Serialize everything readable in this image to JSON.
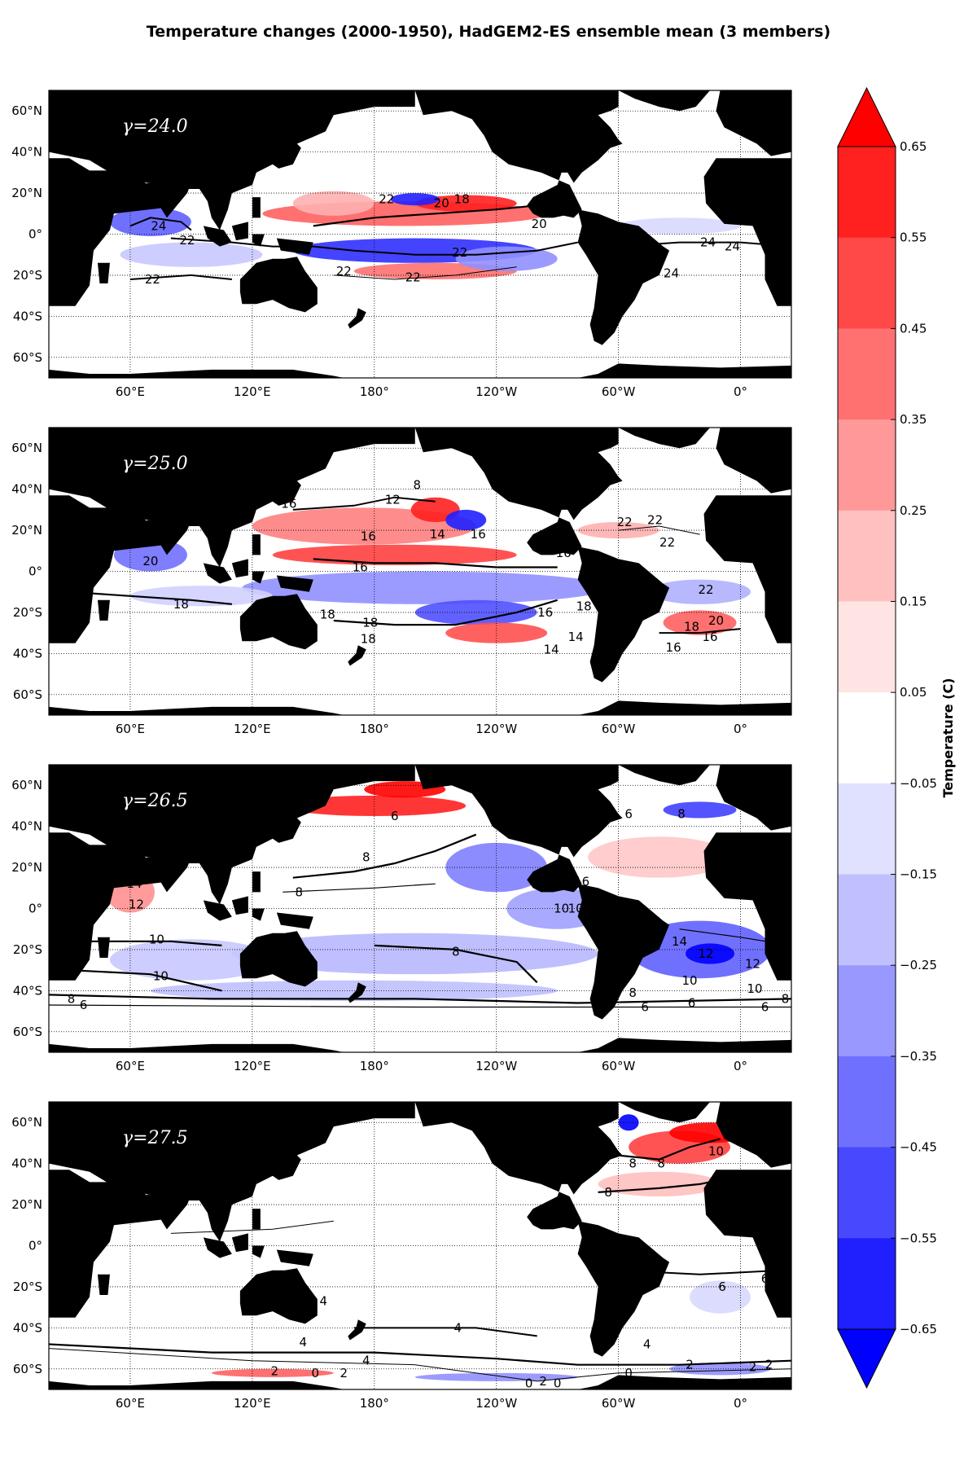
{
  "title": "Temperature changes (2000-1950), HadGEM2-ES ensemble mean (3 members)",
  "map": {
    "lat_labels": [
      "60°N",
      "40°N",
      "20°N",
      "0°",
      "20°S",
      "40°S",
      "60°S"
    ],
    "lat_values": [
      60,
      40,
      20,
      0,
      -20,
      -40,
      -60
    ],
    "lon_labels": [
      "60°E",
      "120°E",
      "180°",
      "120°W",
      "60°W",
      "0°"
    ],
    "lon_values": [
      60,
      120,
      180,
      240,
      300,
      360
    ],
    "lon_range": [
      20,
      385
    ],
    "lat_range": [
      -70,
      70
    ]
  },
  "panels": [
    {
      "label": "γ=24.0",
      "contour_labels": [
        {
          "text": "24",
          "lon": 74,
          "lat": 4
        },
        {
          "text": "22",
          "lon": 88,
          "lat": -3
        },
        {
          "text": "22",
          "lon": 71,
          "lat": -22
        },
        {
          "text": "22",
          "lon": 165,
          "lat": -18
        },
        {
          "text": "22",
          "lon": 199,
          "lat": -21
        },
        {
          "text": "22",
          "lon": 222,
          "lat": -9
        },
        {
          "text": "22",
          "lon": 186,
          "lat": 17
        },
        {
          "text": "20",
          "lon": 213,
          "lat": 15
        },
        {
          "text": "18",
          "lon": 223,
          "lat": 17
        },
        {
          "text": "20",
          "lon": 261,
          "lat": 5
        },
        {
          "text": "24",
          "lon": 344,
          "lat": -4
        },
        {
          "text": "24",
          "lon": 356,
          "lat": -6
        },
        {
          "text": "24",
          "lon": 326,
          "lat": -19
        }
      ]
    },
    {
      "label": "γ=25.0",
      "contour_labels": [
        {
          "text": "8",
          "lon": 201,
          "lat": 42
        },
        {
          "text": "12",
          "lon": 189,
          "lat": 35
        },
        {
          "text": "16",
          "lon": 138,
          "lat": 33
        },
        {
          "text": "16",
          "lon": 177,
          "lat": 17
        },
        {
          "text": "14",
          "lon": 211,
          "lat": 18
        },
        {
          "text": "16",
          "lon": 231,
          "lat": 18
        },
        {
          "text": "16",
          "lon": 173,
          "lat": 2
        },
        {
          "text": "16",
          "lon": 273,
          "lat": 9
        },
        {
          "text": "22",
          "lon": 303,
          "lat": 24
        },
        {
          "text": "22",
          "lon": 318,
          "lat": 25
        },
        {
          "text": "22",
          "lon": 324,
          "lat": 14
        },
        {
          "text": "20",
          "lon": 70,
          "lat": 5
        },
        {
          "text": "18",
          "lon": 85,
          "lat": -16
        },
        {
          "text": "18",
          "lon": 157,
          "lat": -21
        },
        {
          "text": "18",
          "lon": 178,
          "lat": -25
        },
        {
          "text": "18",
          "lon": 177,
          "lat": -33
        },
        {
          "text": "16",
          "lon": 264,
          "lat": -20
        },
        {
          "text": "18",
          "lon": 283,
          "lat": -17
        },
        {
          "text": "14",
          "lon": 267,
          "lat": -38
        },
        {
          "text": "14",
          "lon": 279,
          "lat": -32
        },
        {
          "text": "16",
          "lon": 327,
          "lat": -37
        },
        {
          "text": "22",
          "lon": 343,
          "lat": -9
        },
        {
          "text": "20",
          "lon": 348,
          "lat": -24
        },
        {
          "text": "18",
          "lon": 336,
          "lat": -27
        },
        {
          "text": "16",
          "lon": 345,
          "lat": -32
        }
      ]
    },
    {
      "label": "γ=26.5",
      "contour_labels": [
        {
          "text": "6",
          "lon": 190,
          "lat": 45
        },
        {
          "text": "8",
          "lon": 176,
          "lat": 25
        },
        {
          "text": "8",
          "lon": 143,
          "lat": 8
        },
        {
          "text": "14",
          "lon": 62,
          "lat": 12
        },
        {
          "text": "12",
          "lon": 63,
          "lat": 2
        },
        {
          "text": "10",
          "lon": 73,
          "lat": -15
        },
        {
          "text": "10",
          "lon": 75,
          "lat": -33
        },
        {
          "text": "8",
          "lon": 31,
          "lat": -44
        },
        {
          "text": "6",
          "lon": 37,
          "lat": -47
        },
        {
          "text": "8",
          "lon": 220,
          "lat": -21
        },
        {
          "text": "16",
          "lon": 282,
          "lat": 13
        },
        {
          "text": "10",
          "lon": 272,
          "lat": 0
        },
        {
          "text": "10",
          "lon": 279,
          "lat": 0
        },
        {
          "text": "6",
          "lon": 305,
          "lat": 46
        },
        {
          "text": "8",
          "lon": 331,
          "lat": 46
        },
        {
          "text": "14",
          "lon": 330,
          "lat": -16
        },
        {
          "text": "12",
          "lon": 343,
          "lat": -22
        },
        {
          "text": "12",
          "lon": 366,
          "lat": -27
        },
        {
          "text": "10",
          "lon": 335,
          "lat": -35
        },
        {
          "text": "10",
          "lon": 367,
          "lat": -39
        },
        {
          "text": "8",
          "lon": 307,
          "lat": -41
        },
        {
          "text": "6",
          "lon": 313,
          "lat": -48
        },
        {
          "text": "6",
          "lon": 336,
          "lat": -46
        },
        {
          "text": "6",
          "lon": 372,
          "lat": -48
        },
        {
          "text": "8",
          "lon": 382,
          "lat": -44
        }
      ]
    },
    {
      "label": "γ=27.5",
      "contour_labels": [
        {
          "text": "8",
          "lon": 307,
          "lat": 40
        },
        {
          "text": "8",
          "lon": 321,
          "lat": 40
        },
        {
          "text": "8",
          "lon": 295,
          "lat": 26
        },
        {
          "text": "10",
          "lon": 348,
          "lat": 46
        },
        {
          "text": "6",
          "lon": 351,
          "lat": -20
        },
        {
          "text": "6",
          "lon": 372,
          "lat": -16
        },
        {
          "text": "4",
          "lon": 155,
          "lat": -27
        },
        {
          "text": "4",
          "lon": 145,
          "lat": -47
        },
        {
          "text": "4",
          "lon": 221,
          "lat": -40
        },
        {
          "text": "4",
          "lon": 314,
          "lat": -48
        },
        {
          "text": "4",
          "lon": 176,
          "lat": -56
        },
        {
          "text": "2",
          "lon": 131,
          "lat": -61
        },
        {
          "text": "0",
          "lon": 151,
          "lat": -62
        },
        {
          "text": "2",
          "lon": 165,
          "lat": -62
        },
        {
          "text": "0",
          "lon": 256,
          "lat": -67
        },
        {
          "text": "2",
          "lon": 263,
          "lat": -66
        },
        {
          "text": "0",
          "lon": 270,
          "lat": -67
        },
        {
          "text": "0",
          "lon": 305,
          "lat": -62
        },
        {
          "text": "2",
          "lon": 335,
          "lat": -58
        },
        {
          "text": "2",
          "lon": 366,
          "lat": -59
        },
        {
          "text": "2",
          "lon": 374,
          "lat": -58
        }
      ]
    }
  ],
  "colorbar": {
    "label": "Temperature (C)",
    "ticks": [
      "0.65",
      "0.55",
      "0.45",
      "0.35",
      "0.25",
      "0.15",
      "0.05",
      "−0.05",
      "−0.15",
      "−0.25",
      "−0.35",
      "−0.45",
      "−0.55",
      "−0.65"
    ],
    "bands": [
      "#ff0000",
      "#ff2020",
      "#ff4848",
      "#ff7070",
      "#ff9898",
      "#ffc0c0",
      "#ffe4e4",
      "#ffffff",
      "#e0e0ff",
      "#c0c0ff",
      "#9898ff",
      "#7070ff",
      "#4848ff",
      "#2020ff",
      "#0000ff"
    ],
    "over_color": "#ff0000",
    "under_color": "#0000ff"
  }
}
